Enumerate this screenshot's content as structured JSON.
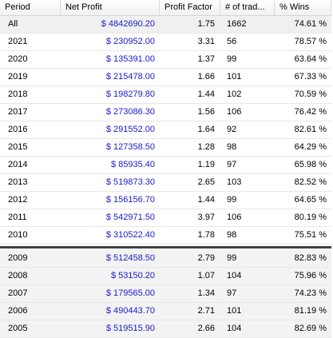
{
  "columns": {
    "period": "Period",
    "net_profit": "Net Profit",
    "profit_factor": "Profit Factor",
    "num_trades": "# of trad...",
    "pct_wins": "% Wins"
  },
  "rows_top": [
    {
      "period": "All",
      "net_profit": "$ 4842690.20",
      "profit_factor": "1.75",
      "num_trades": "1662",
      "pct_wins": "74.61 %"
    },
    {
      "period": "2021",
      "net_profit": "$ 230952.00",
      "profit_factor": "3.31",
      "num_trades": "56",
      "pct_wins": "78.57 %"
    },
    {
      "period": "2020",
      "net_profit": "$ 135391.00",
      "profit_factor": "1.37",
      "num_trades": "99",
      "pct_wins": "63.64 %"
    },
    {
      "period": "2019",
      "net_profit": "$ 215478.00",
      "profit_factor": "1.66",
      "num_trades": "101",
      "pct_wins": "67.33 %"
    },
    {
      "period": "2018",
      "net_profit": "$ 198279.80",
      "profit_factor": "1.44",
      "num_trades": "102",
      "pct_wins": "70.59 %"
    },
    {
      "period": "2017",
      "net_profit": "$ 273086.30",
      "profit_factor": "1.56",
      "num_trades": "106",
      "pct_wins": "76.42 %"
    },
    {
      "period": "2016",
      "net_profit": "$ 291552.00",
      "profit_factor": "1.64",
      "num_trades": "92",
      "pct_wins": "82.61 %"
    },
    {
      "period": "2015",
      "net_profit": "$ 127358.50",
      "profit_factor": "1.28",
      "num_trades": "98",
      "pct_wins": "64.29 %"
    },
    {
      "period": "2014",
      "net_profit": "$ 85935.40",
      "profit_factor": "1.19",
      "num_trades": "97",
      "pct_wins": "65.98 %"
    },
    {
      "period": "2013",
      "net_profit": "$ 519873.30",
      "profit_factor": "2.65",
      "num_trades": "103",
      "pct_wins": "82.52 %"
    },
    {
      "period": "2012",
      "net_profit": "$ 156156.70",
      "profit_factor": "1.44",
      "num_trades": "99",
      "pct_wins": "64.65 %"
    },
    {
      "period": "2011",
      "net_profit": "$ 542971.50",
      "profit_factor": "3.97",
      "num_trades": "106",
      "pct_wins": "80.19 %"
    },
    {
      "period": "2010",
      "net_profit": "$ 310522.40",
      "profit_factor": "1.78",
      "num_trades": "98",
      "pct_wins": "75.51 %"
    }
  ],
  "rows_bottom": [
    {
      "period": "2009",
      "net_profit": "$ 512458.50",
      "profit_factor": "2.79",
      "num_trades": "99",
      "pct_wins": "82.83 %"
    },
    {
      "period": "2008",
      "net_profit": "$ 53150.20",
      "profit_factor": "1.07",
      "num_trades": "104",
      "pct_wins": "75.96 %"
    },
    {
      "period": "2007",
      "net_profit": "$ 179565.00",
      "profit_factor": "1.34",
      "num_trades": "97",
      "pct_wins": "74.23 %"
    },
    {
      "period": "2006",
      "net_profit": "$ 490443.70",
      "profit_factor": "2.71",
      "num_trades": "101",
      "pct_wins": "81.19 %"
    },
    {
      "period": "2005",
      "net_profit": "$ 519515.90",
      "profit_factor": "2.66",
      "num_trades": "104",
      "pct_wins": "82.69 %"
    }
  ],
  "colors": {
    "profit_text": "#1a1acc",
    "separator": "#000000"
  }
}
